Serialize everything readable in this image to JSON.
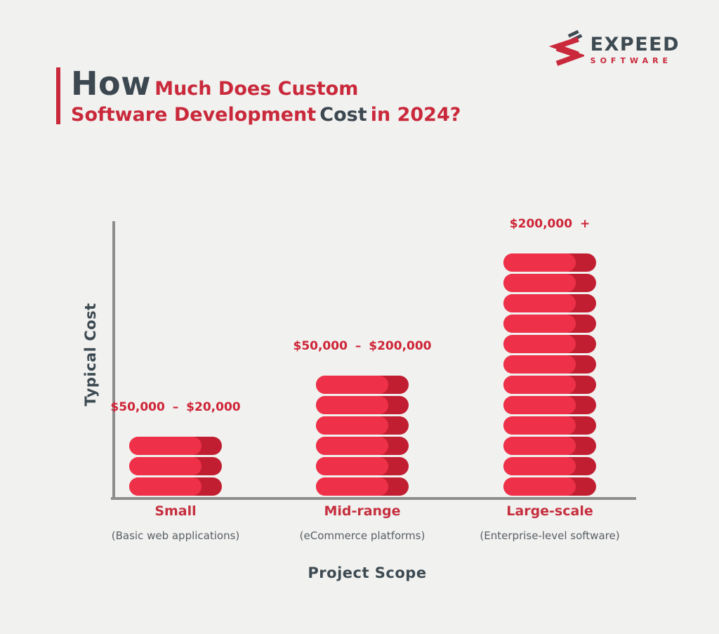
{
  "page": {
    "background": "#F1F1EF"
  },
  "logo": {
    "brand": "EXPEED",
    "sub_brand": "SOFTWARE"
  },
  "title": {
    "lead": "How",
    "line1_rest": "Much Does Custom",
    "line2_red1": "Software Development",
    "line2_slate": "Cost",
    "line2_red2": "in 2024?"
  },
  "chart_data": {
    "type": "bar",
    "title": "How Much Does Custom Software Development Cost in 2024?",
    "xlabel": "Project Scope",
    "ylabel": "Typical Cost",
    "grid": false,
    "legend": "none",
    "categories": [
      "Small",
      "Mid-range",
      "Large-scale"
    ],
    "bars": [
      {
        "category": "Small",
        "description": "(Basic web applications)",
        "cost_label": "$50,000 – $20,000",
        "pill_units": 3
      },
      {
        "category": "Mid-range",
        "description": "(eCommerce platforms)",
        "cost_label": "$50,000 – $200,000",
        "pill_units": 6
      },
      {
        "category": "Large-scale",
        "description": "(Enterprise-level software)",
        "cost_label": "$200,000 +",
        "pill_units": 12
      }
    ],
    "colors": {
      "pill_light": "#EE3148",
      "pill_dark": "#C21E31",
      "axis": "#8E8E8E",
      "text_red": "#C9293B",
      "text_slate": "#3D4A52",
      "text_gray": "#585E64"
    }
  }
}
